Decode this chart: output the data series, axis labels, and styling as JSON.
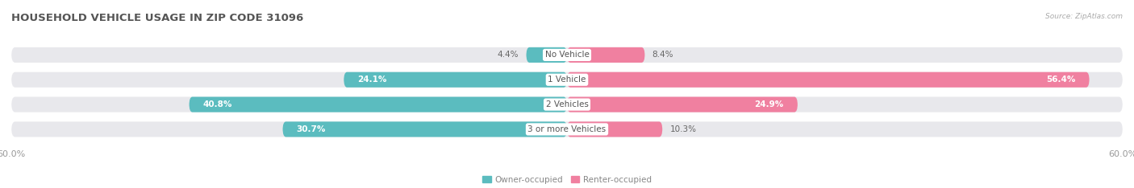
{
  "title": "HOUSEHOLD VEHICLE USAGE IN ZIP CODE 31096",
  "source": "Source: ZipAtlas.com",
  "categories": [
    "No Vehicle",
    "1 Vehicle",
    "2 Vehicles",
    "3 or more Vehicles"
  ],
  "owner_values": [
    4.4,
    24.1,
    40.8,
    30.7
  ],
  "renter_values": [
    8.4,
    56.4,
    24.9,
    10.3
  ],
  "owner_color": "#5bbcbf",
  "renter_color": "#f080a0",
  "bar_bg_color": "#e8e8ec",
  "owner_label": "Owner-occupied",
  "renter_label": "Renter-occupied",
  "x_min": -60.0,
  "x_max": 60.0,
  "x_tick_labels": [
    "60.0%",
    "60.0%"
  ],
  "title_fontsize": 9.5,
  "label_fontsize": 7.5,
  "axis_fontsize": 8,
  "background_color": "#ffffff",
  "cat_label_fontsize": 7.5,
  "val_label_fontsize": 7.5
}
